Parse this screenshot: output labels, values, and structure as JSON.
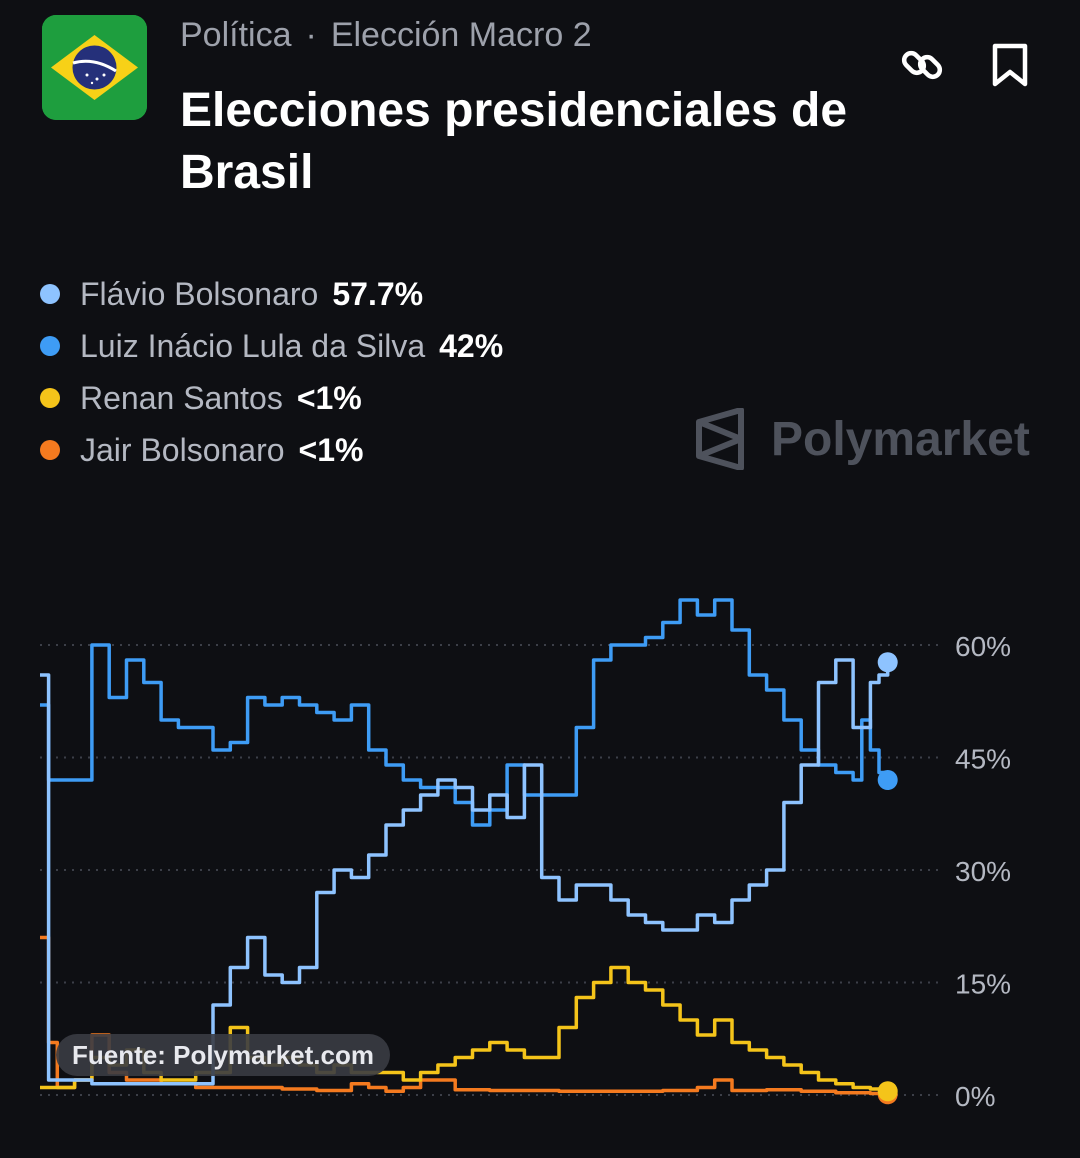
{
  "header": {
    "category": "Política",
    "subcategory": "Elección Macro 2",
    "title": "Elecciones presidenciales de Brasil",
    "flag_icon": "brazil-flag-icon",
    "link_icon": "link-icon",
    "bookmark_icon": "bookmark-icon"
  },
  "watermark": {
    "text": "Polymarket"
  },
  "source": {
    "label": "Fuente: Polymarket.com"
  },
  "chart_data": {
    "type": "line",
    "ylim": [
      0,
      65
    ],
    "y_ticks": [
      0,
      15,
      30,
      45,
      60
    ],
    "y_tick_labels": [
      "0%",
      "15%",
      "30%",
      "45%",
      "60%"
    ],
    "grid": "horizontal-dotted",
    "x_index_range": [
      0,
      100
    ],
    "series": [
      {
        "name": "Flávio Bolsonaro",
        "display_value": "57.7%",
        "color": "#8ec3ff",
        "x": [
          0,
          1,
          2,
          4,
          6,
          8,
          10,
          12,
          14,
          16,
          18,
          20,
          22,
          24,
          26,
          28,
          30,
          32,
          34,
          36,
          38,
          40,
          42,
          44,
          46,
          48,
          50,
          52,
          54,
          56,
          58,
          60,
          62,
          64,
          66,
          68,
          70,
          72,
          74,
          76,
          78,
          80,
          82,
          84,
          86,
          88,
          90,
          92,
          94,
          96,
          97,
          98
        ],
        "values": [
          56,
          2,
          2,
          2,
          1.5,
          1.5,
          1.5,
          1.5,
          1.5,
          1.5,
          1.5,
          12,
          17,
          21,
          16,
          15,
          17,
          27,
          30,
          29,
          32,
          36,
          38,
          40,
          42,
          41,
          38,
          40,
          37,
          44,
          29,
          26,
          28,
          28,
          26,
          24,
          23,
          22,
          22,
          24,
          23,
          26,
          28,
          30,
          39,
          44,
          55,
          58,
          49,
          55,
          56,
          57.7
        ]
      },
      {
        "name": "Luiz Inácio Lula da Silva",
        "display_value": "42%",
        "color": "#3e9cf5",
        "x": [
          0,
          1,
          2,
          4,
          6,
          8,
          10,
          12,
          14,
          16,
          18,
          20,
          22,
          24,
          26,
          28,
          30,
          32,
          34,
          36,
          38,
          40,
          42,
          44,
          46,
          48,
          50,
          52,
          54,
          56,
          58,
          60,
          62,
          64,
          66,
          68,
          70,
          72,
          74,
          76,
          78,
          80,
          82,
          84,
          86,
          88,
          90,
          92,
          94,
          95,
          96,
          97,
          98
        ],
        "values": [
          52,
          42,
          42,
          42,
          60,
          53,
          58,
          55,
          50,
          49,
          49,
          46,
          47,
          53,
          52,
          53,
          52,
          51,
          50,
          52,
          46,
          44,
          42,
          41,
          41,
          39,
          36,
          38,
          44,
          40,
          40,
          40,
          49,
          58,
          60,
          60,
          61,
          63,
          66,
          64,
          66,
          62,
          56,
          54,
          50,
          46,
          44,
          43,
          42,
          50,
          46,
          43,
          42
        ]
      },
      {
        "name": "Renan Santos",
        "display_value": "<1%",
        "color": "#f4c41a",
        "x": [
          0,
          2,
          4,
          6,
          8,
          10,
          12,
          14,
          16,
          18,
          20,
          22,
          24,
          26,
          28,
          30,
          32,
          34,
          36,
          38,
          40,
          42,
          44,
          46,
          48,
          50,
          52,
          54,
          56,
          58,
          60,
          62,
          64,
          66,
          68,
          70,
          72,
          74,
          76,
          78,
          80,
          82,
          84,
          86,
          88,
          90,
          92,
          94,
          96,
          98
        ],
        "values": [
          1,
          1,
          2,
          5,
          4,
          6,
          3,
          2,
          2,
          3,
          3,
          9,
          5,
          4,
          5,
          4,
          3,
          4,
          3,
          3,
          3,
          2,
          3,
          4,
          5,
          6,
          7,
          6,
          5,
          5,
          9,
          13,
          15,
          17,
          15,
          14,
          12,
          10,
          8,
          10,
          7,
          6,
          5,
          4,
          3,
          2,
          1.5,
          1,
          0.8,
          0.5
        ]
      },
      {
        "name": "Jair Bolsonaro",
        "display_value": "<1%",
        "color": "#f47a1f",
        "x": [
          0,
          1,
          2,
          4,
          6,
          8,
          10,
          12,
          14,
          16,
          18,
          20,
          24,
          28,
          32,
          36,
          38,
          40,
          42,
          44,
          48,
          52,
          56,
          60,
          64,
          68,
          72,
          76,
          78,
          80,
          84,
          88,
          92,
          96,
          98
        ],
        "values": [
          21,
          7,
          1,
          2,
          8,
          3,
          2,
          2,
          1.5,
          1.5,
          1,
          1,
          1,
          0.8,
          0.6,
          1.5,
          1,
          0.5,
          1,
          2,
          0.7,
          0.6,
          0.6,
          0.5,
          0.5,
          0.5,
          0.6,
          1,
          2,
          0.6,
          0.7,
          0.5,
          0.3,
          0.2,
          0.1
        ]
      }
    ]
  }
}
